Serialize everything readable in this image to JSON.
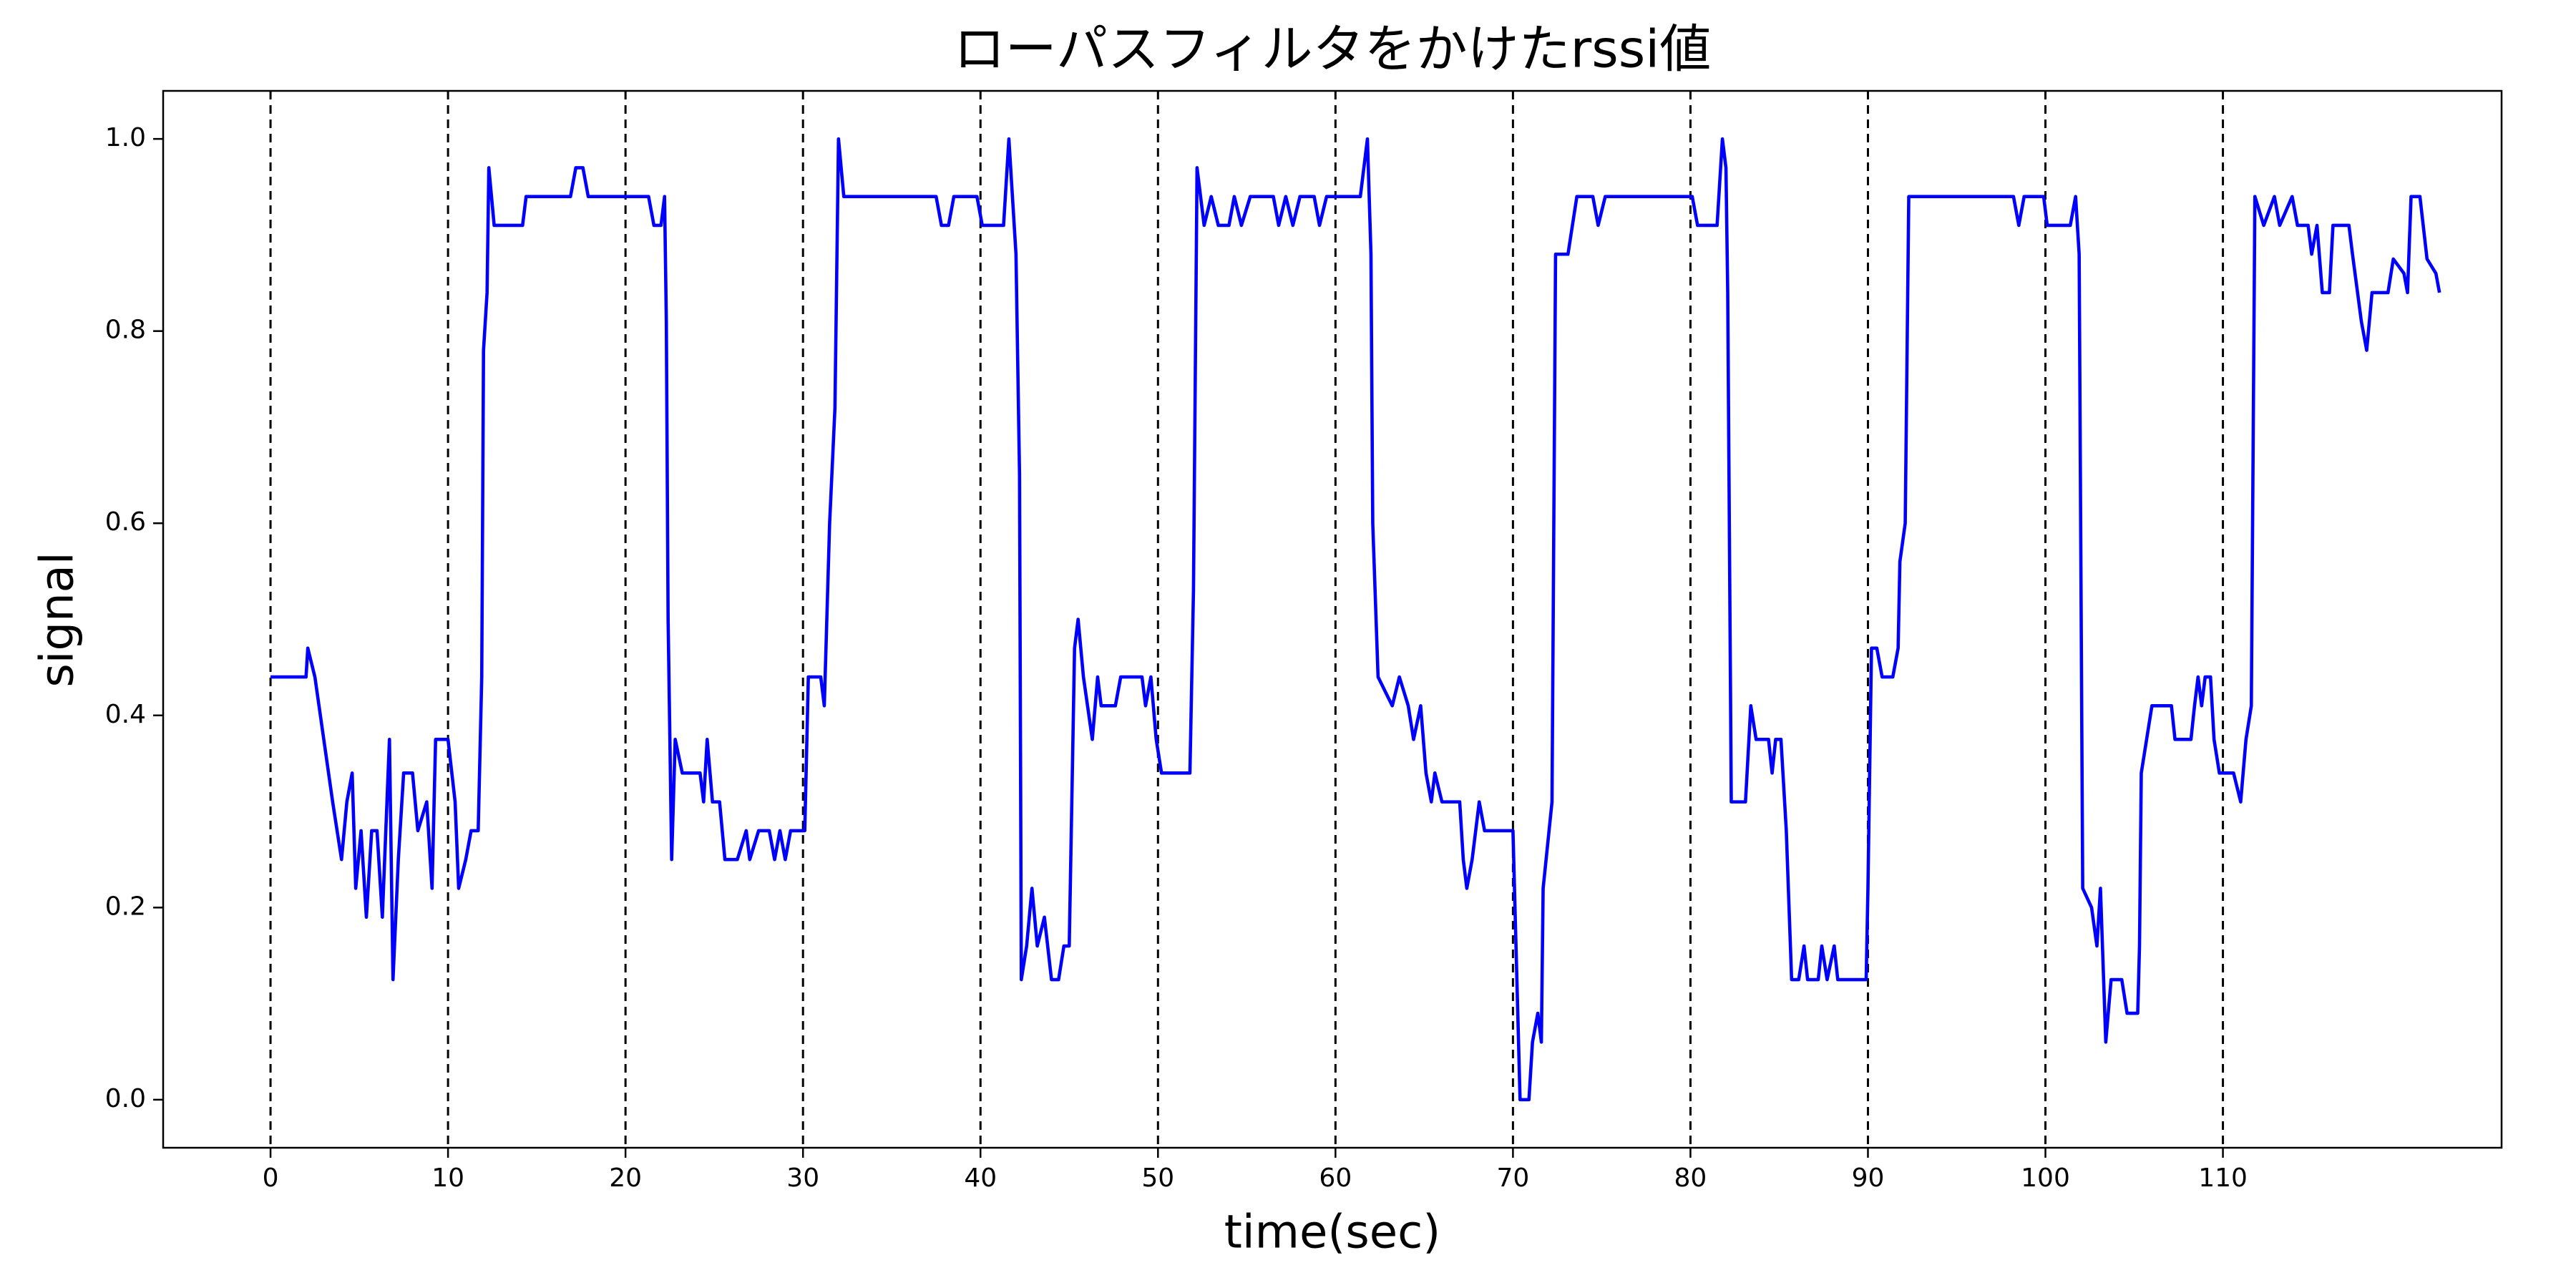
{
  "chart_data": {
    "type": "line",
    "title": "ローパスフィルタをかけたrssi値",
    "xlabel": "time(sec)",
    "ylabel": "signal",
    "color": "#0000ff",
    "xlim": [
      -6.05,
      125.7
    ],
    "ylim": [
      -0.05,
      1.05
    ],
    "xticks": [
      0,
      10,
      20,
      30,
      40,
      50,
      60,
      70,
      80,
      90,
      100,
      110
    ],
    "yticks": [
      {
        "value": 0,
        "label": "0.0"
      },
      0.2,
      0.4,
      0.6,
      0.8,
      {
        "value": 1,
        "label": "1.0"
      }
    ],
    "vlines": [
      0,
      10,
      20,
      30,
      40,
      50,
      60,
      70,
      80,
      90,
      100,
      110
    ],
    "x": [
      0,
      2.0,
      2.1,
      2.5,
      3.0,
      3.5,
      4.0,
      4.3,
      4.6,
      4.8,
      5.1,
      5.4,
      5.7,
      6.0,
      6.3,
      6.7,
      6.9,
      7.2,
      7.5,
      8.0,
      8.3,
      8.8,
      9.1,
      9.3,
      10.0,
      10.4,
      10.6,
      11.0,
      11.3,
      11.7,
      11.9,
      12.0,
      12.2,
      12.3,
      12.6,
      14.2,
      14.4,
      16.9,
      17.2,
      17.6,
      17.9,
      21.3,
      21.6,
      22.0,
      22.2,
      22.3,
      22.4,
      22.6,
      22.8,
      23.2,
      24.2,
      24.4,
      24.6,
      24.9,
      25.3,
      25.6,
      26.3,
      26.8,
      27.0,
      27.5,
      28.1,
      28.4,
      28.7,
      29.0,
      29.3,
      30.1,
      30.3,
      31.0,
      31.2,
      31.5,
      31.8,
      32.0,
      32.3,
      37.5,
      37.8,
      38.2,
      38.5,
      39.8,
      40.1,
      41.3,
      41.6,
      42.0,
      42.2,
      42.3,
      42.6,
      42.9,
      43.2,
      43.6,
      44.0,
      44.4,
      44.7,
      45.0,
      45.3,
      45.5,
      45.8,
      46.3,
      46.6,
      46.8,
      47.6,
      47.9,
      49.1,
      49.3,
      49.6,
      49.9,
      50.2,
      51.8,
      52.0,
      52.2,
      52.6,
      53.0,
      53.4,
      54.0,
      54.3,
      54.7,
      55.2,
      56.5,
      56.8,
      57.2,
      57.6,
      58.0,
      58.8,
      59.1,
      59.5,
      61.4,
      61.8,
      62.0,
      62.1,
      62.4,
      63.2,
      63.6,
      64.1,
      64.4,
      64.8,
      65.1,
      65.4,
      65.6,
      66.0,
      67.0,
      67.2,
      67.4,
      67.7,
      68.1,
      68.4,
      70.0,
      70.4,
      70.9,
      71.1,
      71.4,
      71.6,
      71.7,
      72.2,
      72.4,
      73.1,
      73.6,
      74.5,
      74.8,
      75.2,
      80.1,
      80.4,
      81.5,
      81.8,
      82.0,
      82.1,
      82.3,
      83.1,
      83.4,
      83.7,
      84.4,
      84.6,
      84.8,
      85.1,
      85.4,
      85.7,
      86.1,
      86.4,
      86.6,
      87.2,
      87.4,
      87.7,
      88.1,
      88.3,
      89.9,
      90.0,
      90.2,
      90.5,
      90.8,
      91.4,
      91.7,
      91.8,
      92.1,
      92.3,
      98.2,
      98.5,
      98.8,
      99.9,
      100.1,
      101.4,
      101.7,
      101.9,
      102.1,
      102.6,
      102.9,
      103.1,
      103.4,
      103.7,
      104.3,
      104.6,
      105.2,
      105.3,
      105.4,
      105.7,
      106.0,
      107.1,
      107.3,
      108.2,
      108.4,
      108.6,
      108.8,
      109.0,
      109.3,
      109.5,
      109.8,
      110.6,
      111.0,
      111.3,
      111.6,
      111.8,
      112.3,
      112.9,
      113.2,
      113.9,
      114.2,
      114.8,
      115.0,
      115.3,
      115.6,
      116.0,
      116.2,
      117.1,
      117.3,
      117.8,
      118.1,
      118.4,
      119.3,
      119.6,
      120.2,
      120.4,
      120.6,
      121.1,
      121.5,
      122.0,
      122.2
    ],
    "values": [
      0.44,
      0.44,
      0.47,
      0.44,
      0.375,
      0.31,
      0.25,
      0.31,
      0.34,
      0.22,
      0.28,
      0.19,
      0.28,
      0.28,
      0.19,
      0.375,
      0.125,
      0.25,
      0.34,
      0.34,
      0.28,
      0.31,
      0.22,
      0.375,
      0.375,
      0.31,
      0.22,
      0.25,
      0.28,
      0.28,
      0.44,
      0.78,
      0.84,
      0.97,
      0.91,
      0.91,
      0.94,
      0.94,
      0.97,
      0.97,
      0.94,
      0.94,
      0.91,
      0.91,
      0.94,
      0.81,
      0.5,
      0.25,
      0.375,
      0.34,
      0.34,
      0.31,
      0.375,
      0.31,
      0.31,
      0.25,
      0.25,
      0.28,
      0.25,
      0.28,
      0.28,
      0.25,
      0.28,
      0.25,
      0.28,
      0.28,
      0.44,
      0.44,
      0.41,
      0.6,
      0.72,
      1.0,
      0.94,
      0.94,
      0.91,
      0.91,
      0.94,
      0.94,
      0.91,
      0.91,
      1.0,
      0.88,
      0.65,
      0.125,
      0.16,
      0.22,
      0.16,
      0.19,
      0.125,
      0.125,
      0.16,
      0.16,
      0.47,
      0.5,
      0.44,
      0.375,
      0.44,
      0.41,
      0.41,
      0.44,
      0.44,
      0.41,
      0.44,
      0.375,
      0.34,
      0.34,
      0.53,
      0.97,
      0.91,
      0.94,
      0.91,
      0.91,
      0.94,
      0.91,
      0.94,
      0.94,
      0.91,
      0.94,
      0.91,
      0.94,
      0.94,
      0.91,
      0.94,
      0.94,
      1.0,
      0.88,
      0.6,
      0.44,
      0.41,
      0.44,
      0.41,
      0.375,
      0.41,
      0.34,
      0.31,
      0.34,
      0.31,
      0.31,
      0.25,
      0.22,
      0.25,
      0.31,
      0.28,
      0.28,
      0.0,
      0.0,
      0.06,
      0.09,
      0.06,
      0.22,
      0.31,
      0.88,
      0.88,
      0.94,
      0.94,
      0.91,
      0.94,
      0.94,
      0.91,
      0.91,
      1.0,
      0.97,
      0.84,
      0.31,
      0.31,
      0.41,
      0.375,
      0.375,
      0.34,
      0.375,
      0.375,
      0.28,
      0.125,
      0.125,
      0.16,
      0.125,
      0.125,
      0.16,
      0.125,
      0.16,
      0.125,
      0.125,
      0.22,
      0.47,
      0.47,
      0.44,
      0.44,
      0.47,
      0.56,
      0.6,
      0.94,
      0.94,
      0.91,
      0.94,
      0.94,
      0.91,
      0.91,
      0.94,
      0.88,
      0.22,
      0.2,
      0.16,
      0.22,
      0.06,
      0.125,
      0.125,
      0.09,
      0.09,
      0.16,
      0.34,
      0.375,
      0.41,
      0.41,
      0.375,
      0.375,
      0.41,
      0.44,
      0.41,
      0.44,
      0.44,
      0.375,
      0.34,
      0.34,
      0.31,
      0.375,
      0.41,
      0.94,
      0.91,
      0.94,
      0.91,
      0.94,
      0.91,
      0.91,
      0.88,
      0.91,
      0.84,
      0.84,
      0.91,
      0.91,
      0.88,
      0.81,
      0.78,
      0.84,
      0.84,
      0.875,
      0.86,
      0.84,
      0.94,
      0.94,
      0.875,
      0.86,
      0.84
    ]
  }
}
